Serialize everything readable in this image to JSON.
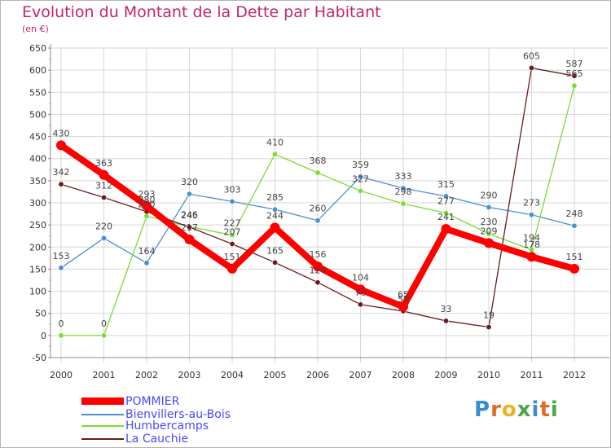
{
  "title": "Evolution du Montant de la Dette par Habitant",
  "subtitle": "(en €)",
  "logo": {
    "text": "Proxiti",
    "colors": [
      "#3a8bd6",
      "#e06a2a",
      "#f0b020",
      "#4aa84a",
      "#3a8bd6",
      "#e06a2a",
      "#4aa84a"
    ]
  },
  "chart_data": {
    "type": "line",
    "title": "Evolution du Montant de la Dette par Habitant",
    "ylabel": "(en €)",
    "x": [
      "2000",
      "2001",
      "2002",
      "2003",
      "2004",
      "2005",
      "2006",
      "2007",
      "2008",
      "2009",
      "2010",
      "2011",
      "2012"
    ],
    "ylim": [
      -50,
      650
    ],
    "yticks": [
      -50,
      0,
      50,
      100,
      150,
      200,
      250,
      300,
      350,
      400,
      450,
      500,
      550,
      600,
      650
    ],
    "grid": true,
    "series": [
      {
        "name": "POMMIER",
        "color": "#ff0000",
        "values": [
          430,
          363,
          293,
          217,
          151,
          244,
          156,
          104,
          65,
          241,
          209,
          178,
          151
        ]
      },
      {
        "name": "Bienvillers-au-Bois",
        "color": "#4a8fd6",
        "values": [
          153,
          220,
          164,
          320,
          303,
          285,
          260,
          359,
          333,
          315,
          290,
          273,
          248
        ]
      },
      {
        "name": "Humbercamps",
        "color": "#77dd33",
        "values": [
          0,
          0,
          270,
          246,
          227,
          410,
          368,
          327,
          298,
          277,
          230,
          194,
          565
        ]
      },
      {
        "name": "La Cauchie",
        "color": "#6b1a1a",
        "values": [
          342,
          312,
          280,
          245,
          207,
          165,
          120,
          70,
          55,
          33,
          19,
          605,
          587
        ]
      }
    ]
  }
}
